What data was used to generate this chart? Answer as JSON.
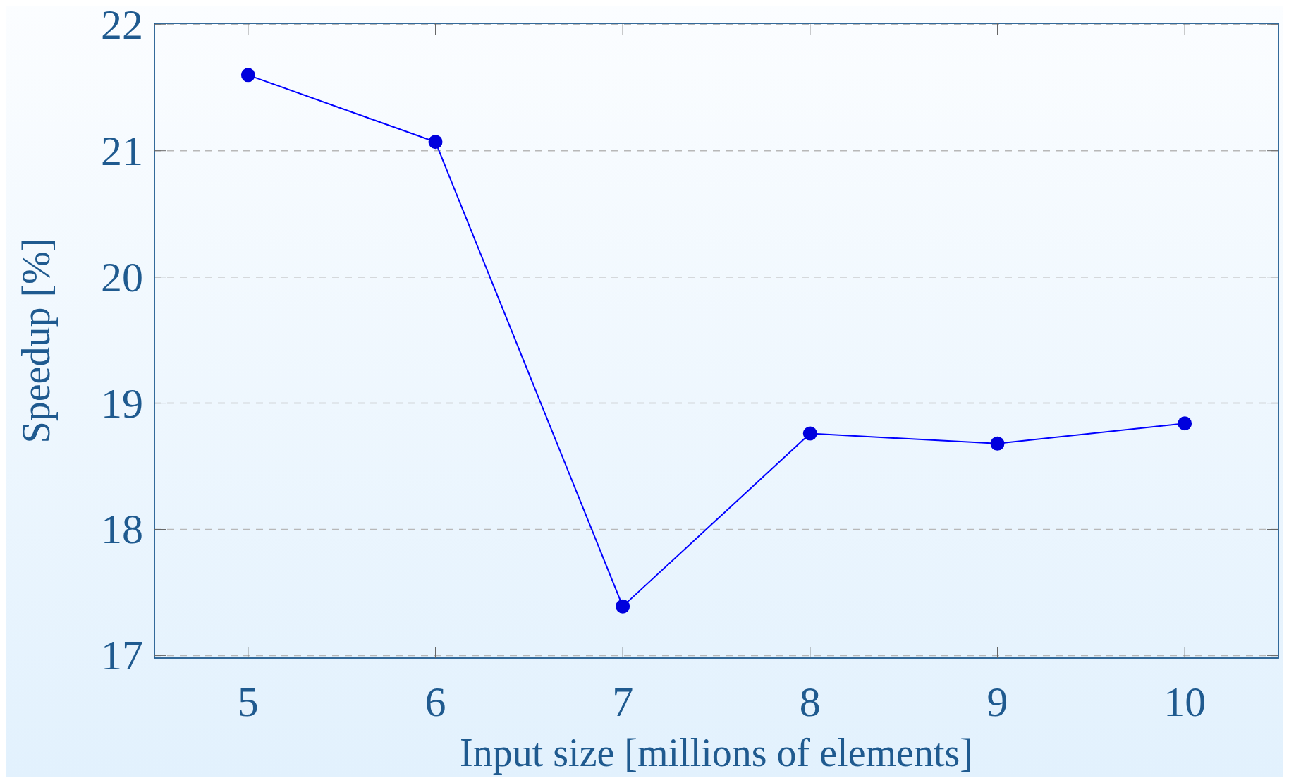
{
  "chart_data": {
    "type": "line",
    "xlabel": "Input size [millions of elements]",
    "ylabel": "Speedup [%]",
    "x": [
      5,
      6,
      7,
      8,
      9,
      10
    ],
    "series": [
      {
        "color": "#0000ff",
        "values": [
          21.6,
          21.07,
          17.39,
          18.76,
          18.68,
          18.84
        ]
      }
    ],
    "xlim": [
      4.5,
      10.5
    ],
    "xticks": [
      5,
      6,
      7,
      8,
      9,
      10
    ],
    "ylim": [
      16.98,
      22.01
    ],
    "yticks": [
      17,
      18,
      19,
      20,
      21,
      22
    ],
    "grid": "y",
    "marker": "circle",
    "line_style": "solid"
  }
}
